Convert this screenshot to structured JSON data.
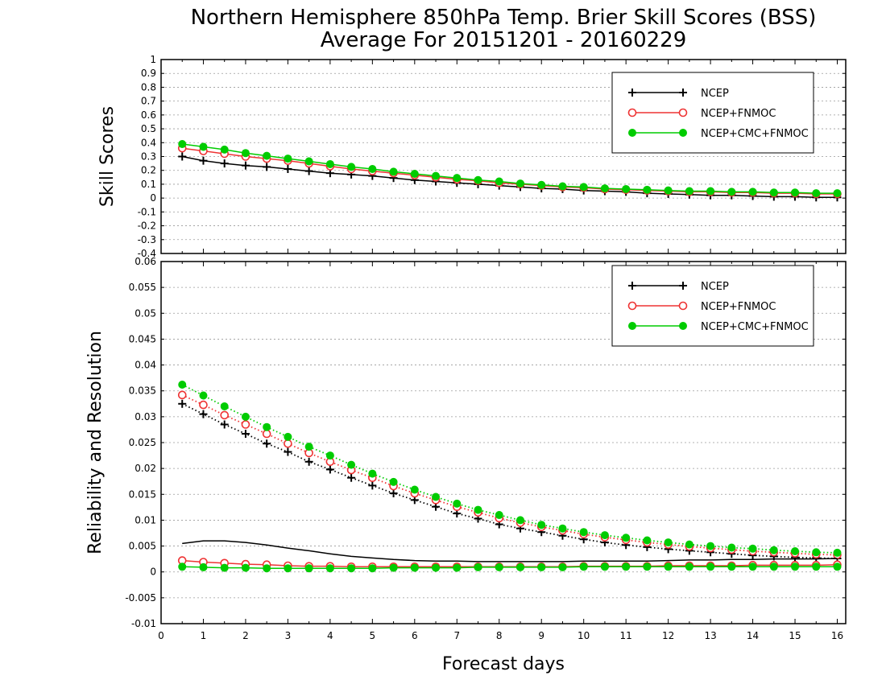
{
  "title_line1": "Northern Hemisphere 850hPa Temp. Brier Skill Scores (BSS)",
  "title_line2": "Average For 20151201 - 20160229",
  "xlabel": "Forecast days",
  "x_ticks": [
    "0",
    "1",
    "2",
    "3",
    "4",
    "5",
    "6",
    "7",
    "8",
    "9",
    "10",
    "11",
    "12",
    "13",
    "14",
    "15",
    "16"
  ],
  "colors": {
    "ncep": "#000000",
    "fnmoc": "#ee3333",
    "cmc": "#00cc00"
  },
  "chart_data": [
    {
      "type": "line",
      "ylabel": "Skill Scores",
      "xlim": [
        0,
        16.2
      ],
      "ylim": [
        -0.4,
        1
      ],
      "y_ticks": [
        "-0.4",
        "-0.3",
        "-0.2",
        "-0.1",
        "0",
        "0.1",
        "0.2",
        "0.3",
        "0.4",
        "0.5",
        "0.6",
        "0.7",
        "0.8",
        "0.9",
        "1"
      ],
      "grid": true,
      "legend_placement": "top-right",
      "x": [
        0.5,
        1,
        1.5,
        2,
        2.5,
        3,
        3.5,
        4,
        4.5,
        5,
        5.5,
        6,
        6.5,
        7,
        7.5,
        8,
        8.5,
        9,
        9.5,
        10,
        10.5,
        11,
        11.5,
        12,
        12.5,
        13,
        13.5,
        14,
        14.5,
        15,
        15.5,
        16
      ],
      "series": [
        {
          "name": "NCEP",
          "marker": "plus",
          "line": "solid",
          "color": "#000000",
          "values": [
            0.3,
            0.27,
            0.25,
            0.235,
            0.225,
            0.21,
            0.195,
            0.18,
            0.17,
            0.16,
            0.145,
            0.13,
            0.12,
            0.11,
            0.1,
            0.09,
            0.08,
            0.07,
            0.065,
            0.055,
            0.05,
            0.045,
            0.035,
            0.03,
            0.025,
            0.02,
            0.02,
            0.015,
            0.01,
            0.01,
            0.005,
            0.005
          ]
        },
        {
          "name": "NCEP+FNMOC",
          "marker": "open-circle",
          "line": "solid",
          "color": "#ee3333",
          "values": [
            0.36,
            0.34,
            0.32,
            0.3,
            0.285,
            0.27,
            0.25,
            0.23,
            0.21,
            0.195,
            0.18,
            0.165,
            0.15,
            0.135,
            0.125,
            0.11,
            0.1,
            0.09,
            0.08,
            0.075,
            0.065,
            0.06,
            0.055,
            0.05,
            0.045,
            0.045,
            0.04,
            0.04,
            0.035,
            0.035,
            0.03,
            0.03
          ]
        },
        {
          "name": "NCEP+CMC+FNMOC",
          "marker": "filled-circle",
          "line": "solid",
          "color": "#00cc00",
          "values": [
            0.39,
            0.37,
            0.35,
            0.325,
            0.305,
            0.285,
            0.265,
            0.245,
            0.225,
            0.21,
            0.19,
            0.175,
            0.16,
            0.145,
            0.13,
            0.12,
            0.105,
            0.095,
            0.085,
            0.08,
            0.07,
            0.065,
            0.06,
            0.055,
            0.05,
            0.05,
            0.045,
            0.045,
            0.04,
            0.04,
            0.035,
            0.035
          ]
        }
      ]
    },
    {
      "type": "line",
      "ylabel": "Reliability and Resolution",
      "xlim": [
        0,
        16.2
      ],
      "ylim": [
        -0.01,
        0.06
      ],
      "y_ticks": [
        "-0.01",
        "-0.005",
        "0",
        "0.005",
        "0.01",
        "0.015",
        "0.02",
        "0.025",
        "0.03",
        "0.035",
        "0.04",
        "0.045",
        "0.05",
        "0.055",
        "0.06"
      ],
      "grid": true,
      "legend_placement": "top-right",
      "x": [
        0.5,
        1,
        1.5,
        2,
        2.5,
        3,
        3.5,
        4,
        4.5,
        5,
        5.5,
        6,
        6.5,
        7,
        7.5,
        8,
        8.5,
        9,
        9.5,
        10,
        10.5,
        11,
        11.5,
        12,
        12.5,
        13,
        13.5,
        14,
        14.5,
        15,
        15.5,
        16
      ],
      "series": [
        {
          "name": "NCEP",
          "marker": "plus",
          "line": "dotted",
          "color": "#000000",
          "values": [
            0.0325,
            0.0305,
            0.0285,
            0.0267,
            0.0248,
            0.0232,
            0.0213,
            0.0198,
            0.0182,
            0.0167,
            0.0152,
            0.0139,
            0.0126,
            0.0113,
            0.0103,
            0.0092,
            0.0084,
            0.0077,
            0.007,
            0.0063,
            0.0057,
            0.0052,
            0.0048,
            0.0044,
            0.0041,
            0.0038,
            0.0035,
            0.0032,
            0.003,
            0.0028,
            0.0027,
            0.0026
          ]
        },
        {
          "name": "NCEP+FNMOC",
          "marker": "open-circle",
          "line": "dotted",
          "color": "#ee3333",
          "values": [
            0.0342,
            0.0323,
            0.0303,
            0.0285,
            0.0267,
            0.0248,
            0.023,
            0.0213,
            0.0197,
            0.0182,
            0.0166,
            0.0152,
            0.0139,
            0.0126,
            0.0115,
            0.0104,
            0.0095,
            0.0087,
            0.008,
            0.0073,
            0.0067,
            0.0062,
            0.0057,
            0.0053,
            0.0049,
            0.0046,
            0.0043,
            0.004,
            0.0038,
            0.0036,
            0.0034,
            0.0033
          ]
        },
        {
          "name": "NCEP+CMC+FNMOC",
          "marker": "filled-circle",
          "line": "dotted",
          "color": "#00cc00",
          "values": [
            0.0362,
            0.0341,
            0.032,
            0.03,
            0.028,
            0.0261,
            0.0242,
            0.0225,
            0.0207,
            0.019,
            0.0174,
            0.0159,
            0.0145,
            0.0132,
            0.012,
            0.011,
            0.01,
            0.0091,
            0.0084,
            0.0077,
            0.0071,
            0.0066,
            0.0061,
            0.0057,
            0.0053,
            0.005,
            0.0047,
            0.0045,
            0.0042,
            0.004,
            0.0038,
            0.0037
          ]
        },
        {
          "name": "NCEP",
          "marker": "none",
          "line": "solid",
          "color": "#000000",
          "values": [
            0.0055,
            0.006,
            0.006,
            0.0057,
            0.0052,
            0.0046,
            0.0041,
            0.0035,
            0.003,
            0.0027,
            0.0024,
            0.0022,
            0.0021,
            0.0021,
            0.002,
            0.002,
            0.002,
            0.002,
            0.002,
            0.0021,
            0.0021,
            0.0021,
            0.0021,
            0.0022,
            0.0023,
            0.0023,
            0.0024,
            0.0024,
            0.0025,
            0.0025,
            0.0025,
            0.0026
          ]
        },
        {
          "name": "NCEP+FNMOC",
          "marker": "open-circle",
          "line": "solid",
          "color": "#ee3333",
          "values": [
            0.0022,
            0.0019,
            0.0017,
            0.0015,
            0.0014,
            0.0012,
            0.0011,
            0.0011,
            0.001,
            0.001,
            0.001,
            0.001,
            0.001,
            0.001,
            0.001,
            0.001,
            0.001,
            0.001,
            0.001,
            0.0011,
            0.0011,
            0.0011,
            0.0011,
            0.0012,
            0.0012,
            0.0012,
            0.0012,
            0.0013,
            0.0013,
            0.0013,
            0.0013,
            0.0014
          ]
        },
        {
          "name": "NCEP+CMC+FNMOC",
          "marker": "filled-circle",
          "line": "solid",
          "color": "#00cc00",
          "values": [
            0.001,
            0.0009,
            0.0008,
            0.0008,
            0.0007,
            0.0007,
            0.0007,
            0.0007,
            0.0007,
            0.0007,
            0.0008,
            0.0008,
            0.0008,
            0.0008,
            0.0009,
            0.0009,
            0.0009,
            0.0009,
            0.0009,
            0.001,
            0.001,
            0.001,
            0.001,
            0.001,
            0.001,
            0.001,
            0.001,
            0.001,
            0.001,
            0.001,
            0.001,
            0.001
          ]
        }
      ]
    }
  ],
  "legend": [
    {
      "label": "NCEP",
      "marker": "plus",
      "color": "#000000"
    },
    {
      "label": "NCEP+FNMOC",
      "marker": "open-circle",
      "color": "#ee3333"
    },
    {
      "label": "NCEP+CMC+FNMOC",
      "marker": "filled-circle",
      "color": "#00cc00"
    }
  ]
}
